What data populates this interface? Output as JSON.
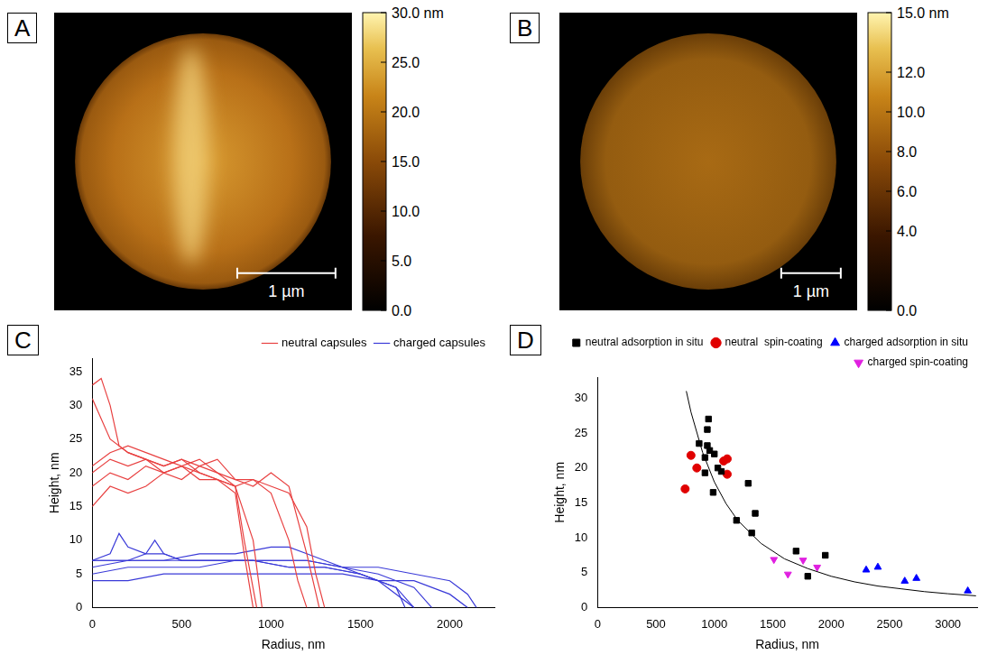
{
  "chart_data": [
    {
      "panel": "A",
      "type": "image",
      "scale_bar": "1 µm",
      "colorbar": {
        "range": [
          0,
          30
        ],
        "ticks": [
          {
            "value": 30,
            "label": "30.0 nm"
          },
          {
            "value": 25,
            "label": "25.0"
          },
          {
            "value": 20,
            "label": "20.0"
          },
          {
            "value": 15,
            "label": "15.0"
          },
          {
            "value": 10,
            "label": "10.0"
          },
          {
            "value": 5,
            "label": "5.0"
          },
          {
            "value": 0,
            "label": "0.0"
          }
        ]
      }
    },
    {
      "panel": "B",
      "type": "image",
      "scale_bar": "1 µm",
      "colorbar": {
        "range": [
          0,
          15
        ],
        "ticks": [
          {
            "value": 15,
            "label": "15.0 nm"
          },
          {
            "value": 12,
            "label": "12.0"
          },
          {
            "value": 10,
            "label": "10.0"
          },
          {
            "value": 8,
            "label": "8.0"
          },
          {
            "value": 6,
            "label": "6.0"
          },
          {
            "value": 4,
            "label": "4.0"
          },
          {
            "value": 0,
            "label": "0.0"
          }
        ]
      }
    },
    {
      "panel": "C",
      "type": "line",
      "x_label": "Radius, nm",
      "y_label": "Height, nm",
      "xlim": [
        0,
        2250
      ],
      "xticks": [
        0,
        500,
        1000,
        1500,
        2000
      ],
      "ylim": [
        0,
        37
      ],
      "yticks": [
        0,
        5,
        10,
        15,
        20,
        25,
        30,
        35
      ],
      "grid": false,
      "legend": "top right",
      "series": [
        {
          "name": "neutral capsules",
          "color": "#e84040",
          "curves": [
            {
              "x": [
                0,
                50,
                100,
                150,
                200,
                300,
                400,
                500,
                600,
                700,
                800,
                850,
                900
              ],
              "values": [
                33,
                34,
                30,
                24,
                23,
                22,
                21,
                22,
                20,
                19,
                17,
                8,
                0
              ]
            },
            {
              "x": [
                0,
                100,
                200,
                300,
                400,
                500,
                600,
                700,
                800,
                850,
                920
              ],
              "values": [
                31,
                25,
                23,
                22,
                20,
                21,
                20,
                19,
                18,
                10,
                0
              ]
            },
            {
              "x": [
                0,
                100,
                200,
                300,
                400,
                500,
                600,
                700,
                800,
                900,
                950
              ],
              "values": [
                21,
                23,
                24,
                23,
                22,
                21,
                22,
                20,
                18,
                10,
                0
              ]
            },
            {
              "x": [
                0,
                100,
                200,
                300,
                400,
                500,
                600,
                700,
                800,
                900,
                1000,
                1100,
                1150,
                1200
              ],
              "values": [
                20,
                22,
                21,
                22,
                21,
                22,
                21,
                20,
                19,
                19,
                17,
                10,
                4,
                0
              ]
            },
            {
              "x": [
                0,
                100,
                200,
                300,
                400,
                500,
                600,
                700,
                800,
                900,
                1000,
                1100,
                1200,
                1250,
                1300
              ],
              "values": [
                18,
                20,
                19,
                21,
                20,
                21,
                19,
                19,
                18,
                19,
                18,
                17,
                12,
                5,
                0
              ]
            },
            {
              "x": [
                0,
                100,
                200,
                300,
                400,
                500,
                600,
                700,
                800,
                900,
                1000,
                1100,
                1200,
                1270
              ],
              "values": [
                15,
                18,
                17,
                18,
                20,
                19,
                21,
                22,
                19,
                18,
                20,
                18,
                8,
                0
              ]
            }
          ]
        },
        {
          "name": "charged capsules",
          "color": "#3a3ad8",
          "curves": [
            {
              "x": [
                0,
                100,
                150,
                200,
                300,
                400,
                500,
                700,
                900,
                1100,
                1300,
                1500,
                1700,
                1800
              ],
              "values": [
                7,
                8,
                11,
                9,
                8,
                8,
                7,
                7,
                7,
                6,
                6,
                5,
                3,
                0
              ]
            },
            {
              "x": [
                0,
                200,
                300,
                350,
                400,
                500,
                700,
                900,
                1100,
                1300,
                1500,
                1700,
                1750
              ],
              "values": [
                6,
                7,
                8,
                10,
                8,
                7,
                7,
                7,
                6,
                6,
                5,
                3,
                0
              ]
            },
            {
              "x": [
                0,
                200,
                400,
                600,
                800,
                1000,
                1100,
                1200,
                1400,
                1600,
                1800
              ],
              "values": [
                7,
                7,
                7,
                8,
                8,
                9,
                9,
                8,
                6,
                4,
                0
              ]
            },
            {
              "x": [
                0,
                200,
                400,
                600,
                800,
                1000,
                1200,
                1400,
                1600,
                1800,
                2000,
                2100,
                2150
              ],
              "values": [
                5,
                6,
                6,
                6,
                7,
                7,
                7,
                6,
                6,
                5,
                4,
                2,
                0
              ]
            },
            {
              "x": [
                0,
                200,
                400,
                600,
                800,
                1000,
                1200,
                1400,
                1600,
                1800,
                2000,
                2100
              ],
              "values": [
                4,
                4,
                5,
                5,
                5,
                5,
                5,
                5,
                4,
                4,
                2,
                0
              ]
            },
            {
              "x": [
                0,
                200,
                400,
                600,
                800,
                1000,
                1200,
                1400,
                1600,
                1800,
                1900
              ],
              "values": [
                7,
                7,
                7,
                7,
                7,
                7,
                7,
                6,
                5,
                3,
                0
              ]
            }
          ]
        }
      ]
    },
    {
      "panel": "D",
      "type": "scatter",
      "x_label": "Radius, nm",
      "y_label": "Height, nm",
      "xlim": [
        0,
        3250
      ],
      "xticks": [
        0,
        500,
        1000,
        1500,
        2000,
        2500,
        3000
      ],
      "ylim": [
        0,
        33
      ],
      "yticks": [
        0,
        5,
        10,
        15,
        20,
        25,
        30
      ],
      "grid": false,
      "legend": "top right",
      "series": [
        {
          "name": "neutral adsorption in situ",
          "color": "#000000",
          "marker": "square",
          "x": [
            950,
            940,
            940,
            960,
            870,
            920,
            1000,
            1030,
            1060,
            920,
            990,
            1290,
            1350,
            1190,
            1320,
            1700,
            1950,
            1800
          ],
          "values": [
            27,
            25.5,
            23.2,
            22.5,
            23.5,
            21.5,
            22,
            20,
            19.5,
            19.3,
            16.5,
            17.8,
            13.5,
            12.5,
            10.7,
            8.1,
            7.5,
            4.5
          ]
        },
        {
          "name": "neutral  spin-coating",
          "color": "#e00000",
          "marker": "circle",
          "x": [
            800,
            750,
            850,
            1080,
            1110,
            1110
          ],
          "values": [
            21.8,
            17,
            20,
            21,
            21.3,
            19.1
          ]
        },
        {
          "name": "charged adsorption in situ",
          "color": "#0000ff",
          "marker": "triangle",
          "x": [
            2300,
            2400,
            2630,
            2730,
            3170
          ],
          "values": [
            5.4,
            5.8,
            3.8,
            4.2,
            2.4
          ]
        },
        {
          "name": "charged spin-coating",
          "color": "#e020e0",
          "marker": "triangle_down",
          "x": [
            1510,
            1630,
            1760,
            1880
          ],
          "values": [
            6.9,
            4.8,
            6.8,
            5.8
          ]
        }
      ],
      "line": {
        "color": "#000000",
        "x": [
          760,
          800,
          900,
          1000,
          1100,
          1200,
          1400,
          1600,
          1800,
          2000,
          2200,
          2400,
          2600,
          2800,
          3000,
          3240
        ],
        "values": [
          31,
          28,
          22.2,
          18,
          14.9,
          12.5,
          9.2,
          7,
          5.6,
          4.5,
          3.7,
          3.1,
          2.7,
          2.3,
          2.0,
          1.7
        ]
      }
    }
  ]
}
